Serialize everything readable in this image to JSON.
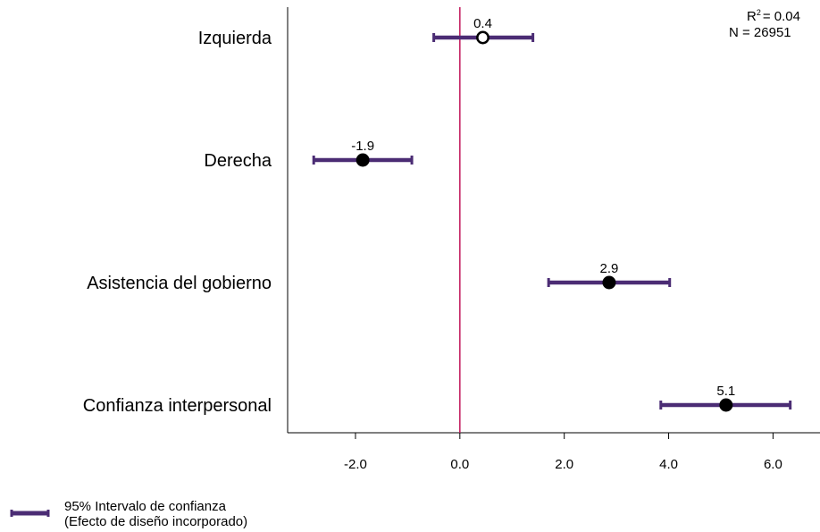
{
  "chart_data": {
    "type": "scatter",
    "title": "",
    "xlabel": "",
    "ylabel": "",
    "xlim": [
      -3.3,
      6.9
    ],
    "x_ticks": [
      -2.0,
      0.0,
      2.0,
      4.0,
      6.0
    ],
    "x_tick_labels": [
      "-2.0",
      "0.0",
      "2.0",
      "4.0",
      "6.0"
    ],
    "reference_line_x": 0,
    "grid": false,
    "categories": [
      "Izquierda",
      "Derecha",
      "Asistencia del gobierno",
      "Confianza interpersonal"
    ],
    "estimates": [
      0.44,
      -1.86,
      2.86,
      5.1
    ],
    "value_labels": [
      "0.4",
      "-1.9",
      "2.9",
      "5.1"
    ],
    "ci_low": [
      -0.5,
      -2.8,
      1.7,
      3.85
    ],
    "ci_high": [
      1.4,
      -0.92,
      4.02,
      6.33
    ],
    "hollow": [
      true,
      false,
      false,
      false
    ],
    "stats": {
      "r2_label": "R",
      "r2_sup": "2",
      "r2_value": "=  0.04",
      "n_label": "N =  26951"
    },
    "legend": {
      "position": "bottom-left",
      "line1": "95% Intervalo de confianza",
      "line2": "(Efecto de diseño incorporado)"
    },
    "colors": {
      "ci": "#4b2c74",
      "zero_line": "#c2185b",
      "point": "#000000",
      "hollow_fill": "#ffffff"
    }
  }
}
